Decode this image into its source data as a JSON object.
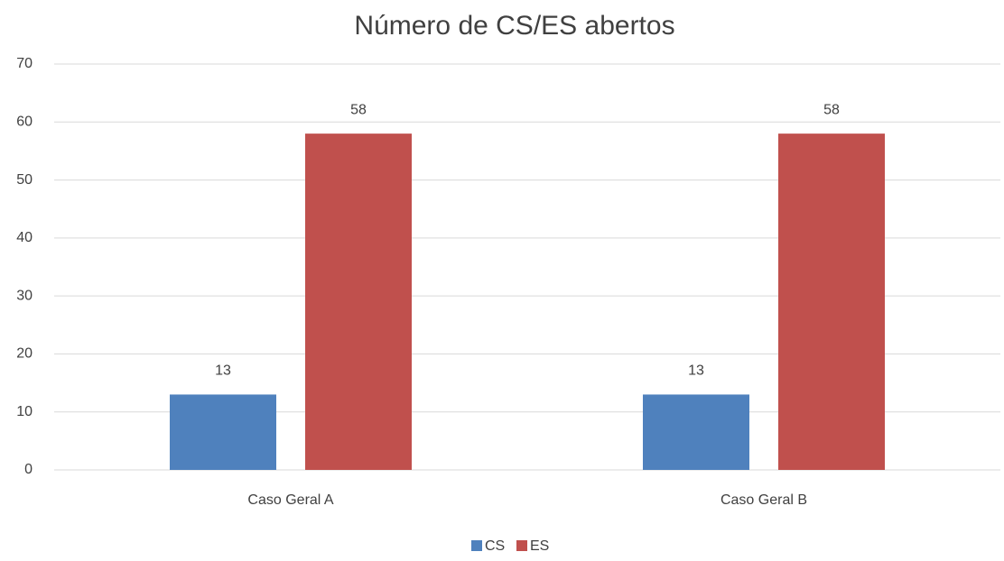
{
  "chart_data": {
    "type": "bar",
    "title": "Número de CS/ES abertos",
    "categories": [
      "Caso Geral A",
      "Caso Geral B"
    ],
    "series": [
      {
        "name": "CS",
        "color": "#4f81bd",
        "values": [
          13,
          13
        ]
      },
      {
        "name": "ES",
        "color": "#c0504d",
        "values": [
          58,
          58
        ]
      }
    ],
    "ylim": [
      0,
      70
    ],
    "yticks": [
      0,
      10,
      20,
      30,
      40,
      50,
      60,
      70
    ],
    "grid": true,
    "legend": "bottom"
  }
}
